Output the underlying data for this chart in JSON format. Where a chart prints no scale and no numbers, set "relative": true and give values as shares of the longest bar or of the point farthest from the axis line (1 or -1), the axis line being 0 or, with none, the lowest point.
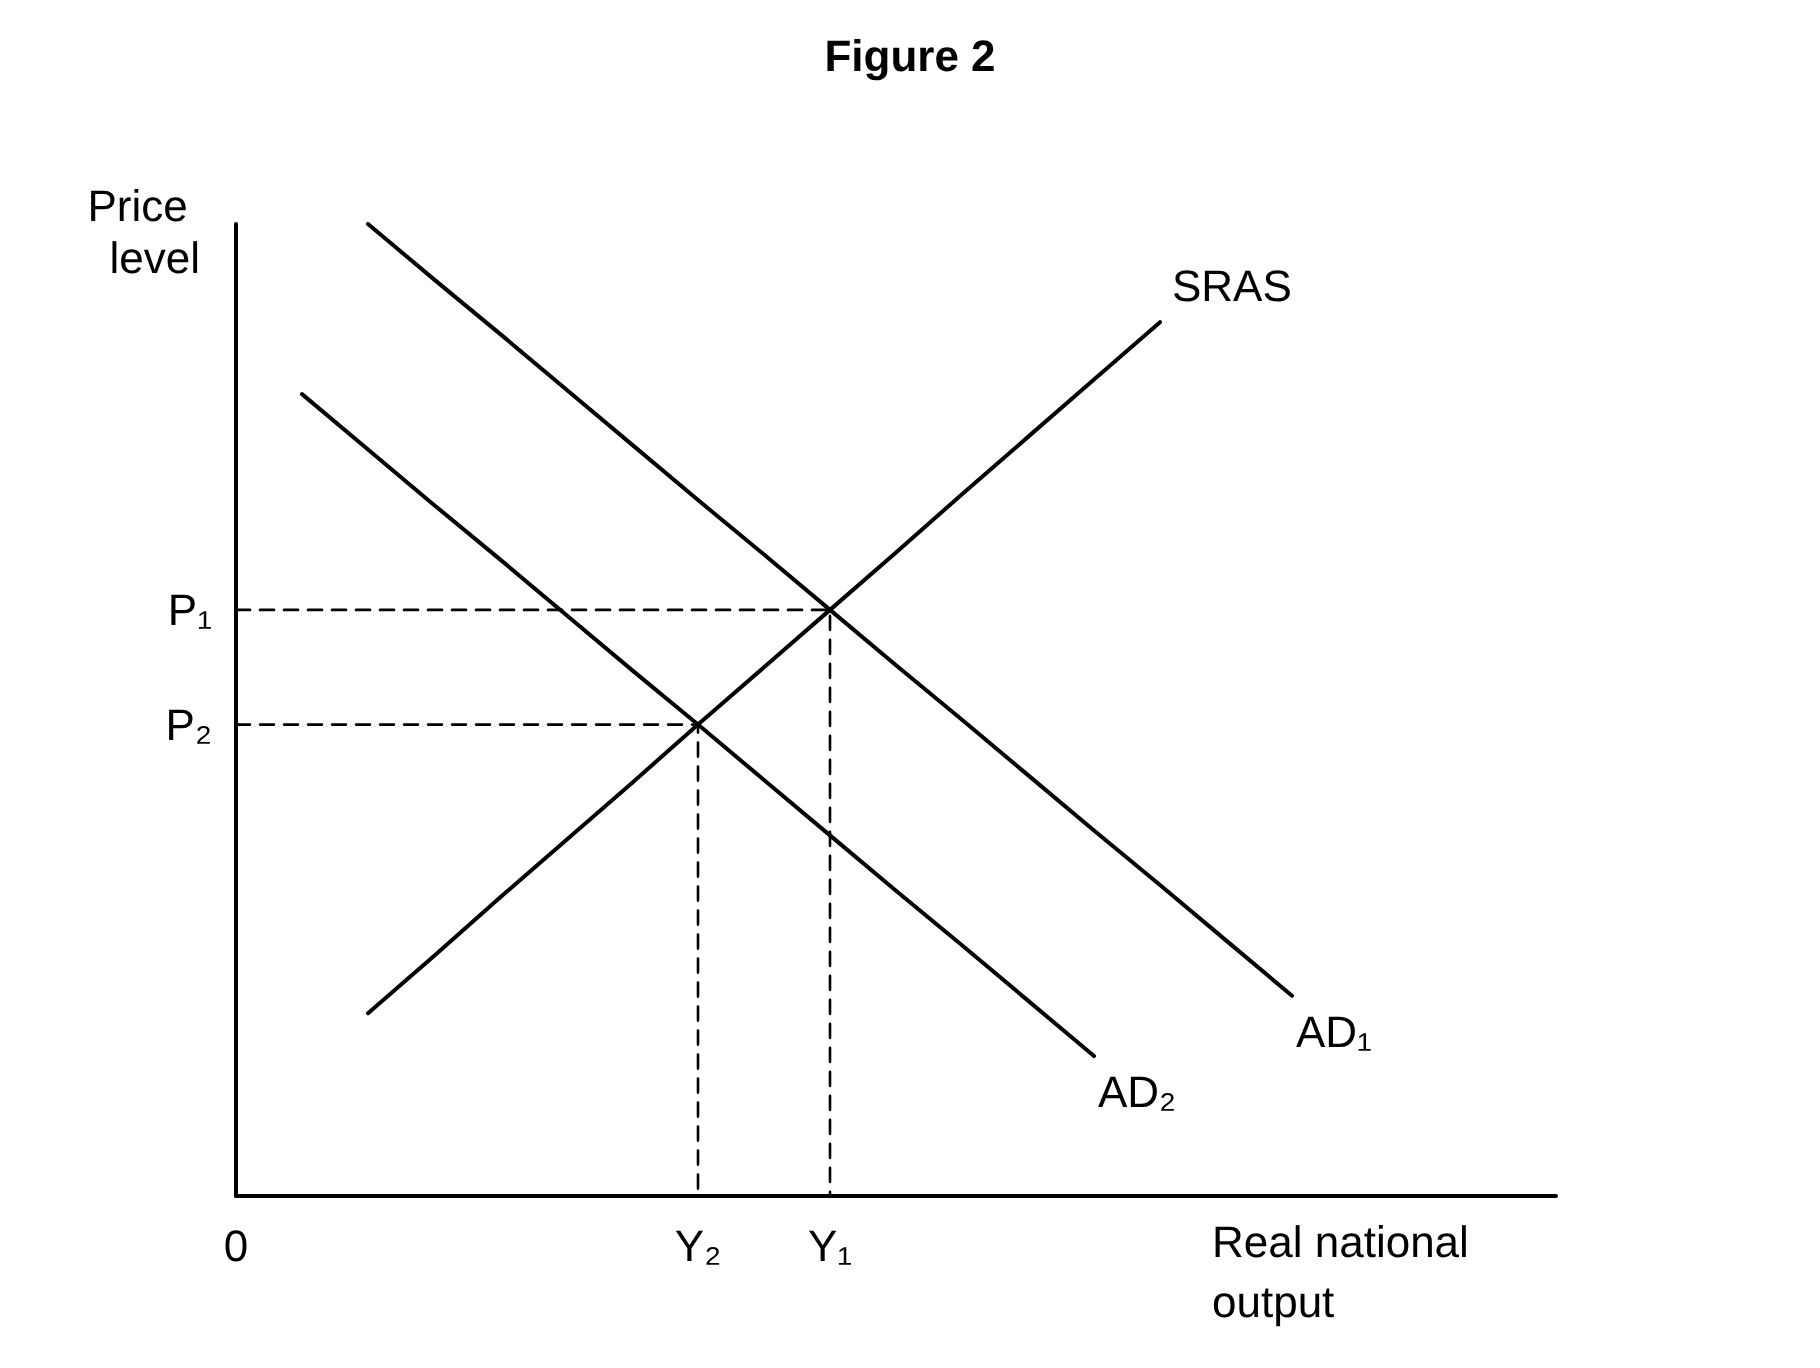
{
  "chart_data": {
    "type": "line",
    "title": "Figure 2",
    "ylabel": "Price level",
    "xlabel": "Real national output",
    "relative": true,
    "categories": [
      "0",
      null,
      null,
      null,
      null,
      null,
      null,
      "Y₂",
      null,
      "Y₁",
      null,
      null,
      null,
      null,
      null,
      null,
      null,
      null,
      null,
      null,
      null
    ],
    "grid": false,
    "legend": false,
    "marker": "none",
    "line_style": "solid",
    "annotations": [
      "P₁",
      "P₂"
    ],
    "series": [
      {
        "name": "SRAS",
        "color": "#000000",
        "values": [
          null,
          null,
          0.188,
          0.247,
          0.307,
          0.366,
          0.425,
          0.485,
          0.544,
          0.603,
          0.662,
          0.722,
          0.781,
          0.84,
          0.899,
          null,
          null,
          null,
          null,
          null,
          null
        ]
      },
      {
        "name": "AD₁",
        "color": "#000000",
        "values": [
          null,
          null,
          1,
          0.943,
          0.887,
          0.83,
          0.773,
          0.716,
          0.66,
          0.603,
          0.546,
          0.49,
          0.433,
          0.376,
          0.32,
          0.263,
          0.206,
          null,
          null,
          null,
          null
        ]
      },
      {
        "name": "AD₂",
        "color": "#000000",
        "values": [
          null,
          0.825,
          0.768,
          0.711,
          0.655,
          0.598,
          0.541,
          0.485,
          0.428,
          0.371,
          0.314,
          0.258,
          0.201,
          0.144,
          null,
          null,
          null,
          null,
          null,
          null,
          null
        ]
      },
      {
        "color": "#000000",
        "line_style": "dashed",
        "x": [
          "0",
          "Y₁",
          "Y₁"
        ],
        "values": [
          0.603,
          0.603,
          0
        ]
      },
      {
        "color": "#000000",
        "line_style": "dashed",
        "x": [
          "0",
          "Y₂",
          "Y₂"
        ],
        "values": [
          0.485,
          0.485,
          0
        ]
      }
    ]
  }
}
